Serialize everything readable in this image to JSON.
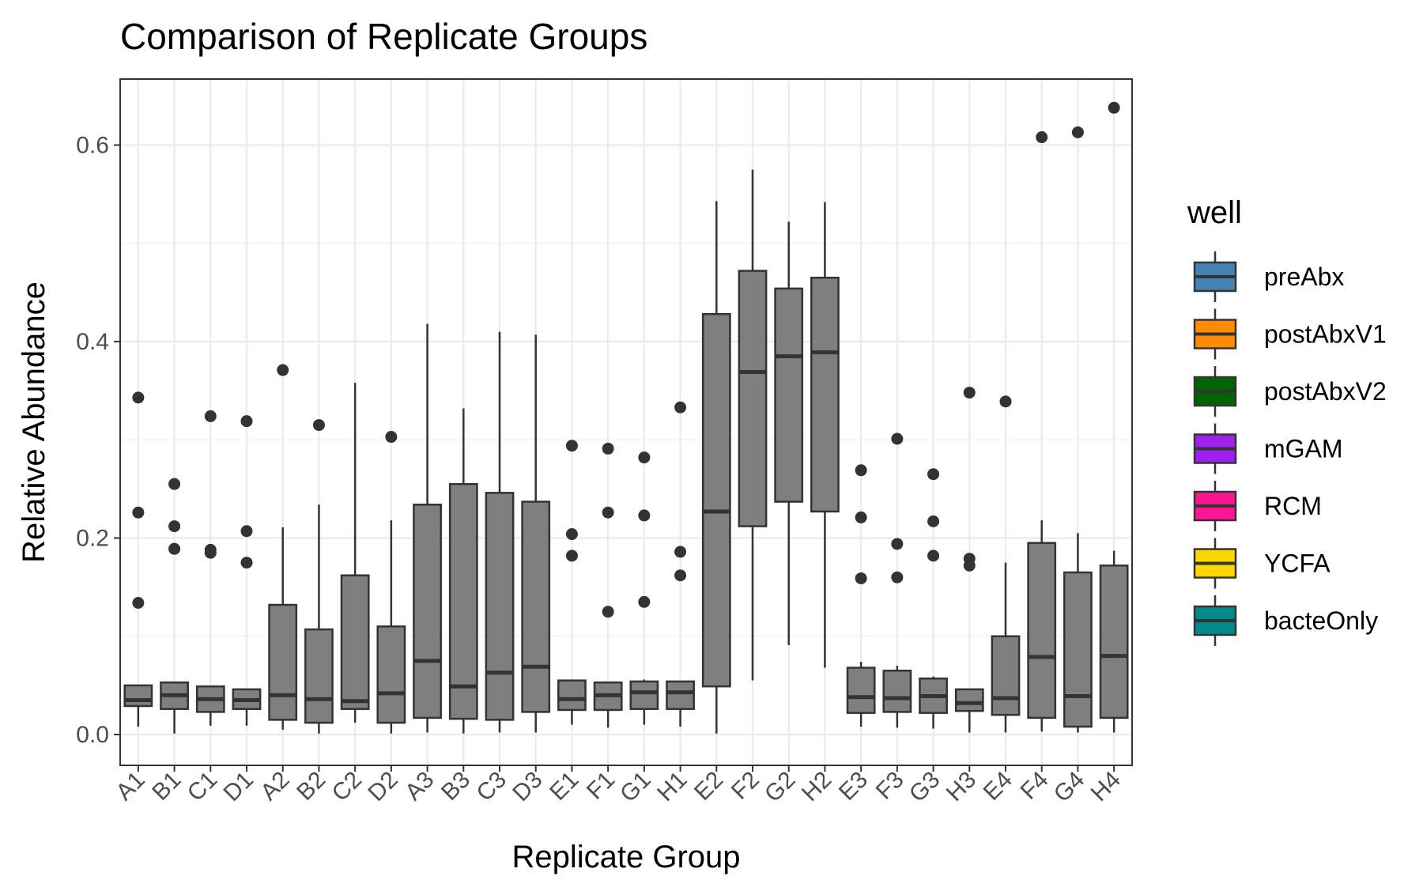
{
  "chart_data": {
    "type": "box",
    "title": "Comparison of Replicate Groups",
    "xlabel": "Replicate Group",
    "ylabel": "Relative Abundance",
    "ylim": [
      -0.04,
      0.67
    ],
    "yticks": [
      0.0,
      0.2,
      0.4,
      0.6
    ],
    "ytick_labels": [
      "0.0",
      "0.2",
      "0.4",
      "0.6"
    ],
    "grid": true,
    "box_fill": "#7f7f7f",
    "box_stroke": "#333333",
    "categories": [
      "A1",
      "B1",
      "C1",
      "D1",
      "A2",
      "B2",
      "C2",
      "D2",
      "A3",
      "B3",
      "C3",
      "D3",
      "E1",
      "F1",
      "G1",
      "H1",
      "E2",
      "F2",
      "G2",
      "H2",
      "E3",
      "F3",
      "G3",
      "H3",
      "E4",
      "F4",
      "G4",
      "H4"
    ],
    "boxes": [
      {
        "low": 0.008,
        "q1": 0.029,
        "median": 0.035,
        "q3": 0.05,
        "high": 0.05,
        "outliers": [
          0.343,
          0.226,
          0.134
        ]
      },
      {
        "low": 0.001,
        "q1": 0.026,
        "median": 0.04,
        "q3": 0.053,
        "high": 0.053,
        "outliers": [
          0.255,
          0.212,
          0.189
        ]
      },
      {
        "low": 0.009,
        "q1": 0.023,
        "median": 0.036,
        "q3": 0.049,
        "high": 0.049,
        "outliers": [
          0.324,
          0.188,
          0.185
        ]
      },
      {
        "low": 0.009,
        "q1": 0.026,
        "median": 0.035,
        "q3": 0.046,
        "high": 0.046,
        "outliers": [
          0.319,
          0.207,
          0.175
        ]
      },
      {
        "low": 0.005,
        "q1": 0.015,
        "median": 0.04,
        "q3": 0.132,
        "high": 0.211,
        "outliers": [
          0.371
        ]
      },
      {
        "low": 0.001,
        "q1": 0.012,
        "median": 0.036,
        "q3": 0.107,
        "high": 0.234,
        "outliers": [
          0.315
        ]
      },
      {
        "low": 0.012,
        "q1": 0.026,
        "median": 0.034,
        "q3": 0.162,
        "high": 0.358,
        "outliers": []
      },
      {
        "low": 0.001,
        "q1": 0.012,
        "median": 0.042,
        "q3": 0.11,
        "high": 0.218,
        "outliers": [
          0.303
        ]
      },
      {
        "low": 0.002,
        "q1": 0.017,
        "median": 0.075,
        "q3": 0.234,
        "high": 0.418,
        "outliers": []
      },
      {
        "low": 0.001,
        "q1": 0.016,
        "median": 0.049,
        "q3": 0.255,
        "high": 0.332,
        "outliers": []
      },
      {
        "low": 0.002,
        "q1": 0.015,
        "median": 0.063,
        "q3": 0.246,
        "high": 0.41,
        "outliers": []
      },
      {
        "low": 0.002,
        "q1": 0.023,
        "median": 0.069,
        "q3": 0.237,
        "high": 0.407,
        "outliers": []
      },
      {
        "low": 0.01,
        "q1": 0.025,
        "median": 0.036,
        "q3": 0.055,
        "high": 0.055,
        "outliers": [
          0.294,
          0.204,
          0.182
        ]
      },
      {
        "low": 0.007,
        "q1": 0.025,
        "median": 0.04,
        "q3": 0.053,
        "high": 0.053,
        "outliers": [
          0.291,
          0.226,
          0.125
        ]
      },
      {
        "low": 0.01,
        "q1": 0.026,
        "median": 0.043,
        "q3": 0.054,
        "high": 0.056,
        "outliers": [
          0.282,
          0.223,
          0.135
        ]
      },
      {
        "low": 0.008,
        "q1": 0.026,
        "median": 0.043,
        "q3": 0.054,
        "high": 0.054,
        "outliers": [
          0.333,
          0.186,
          0.162
        ]
      },
      {
        "low": 0.001,
        "q1": 0.049,
        "median": 0.227,
        "q3": 0.428,
        "high": 0.543,
        "outliers": []
      },
      {
        "low": 0.055,
        "q1": 0.212,
        "median": 0.369,
        "q3": 0.472,
        "high": 0.575,
        "outliers": []
      },
      {
        "low": 0.091,
        "q1": 0.237,
        "median": 0.385,
        "q3": 0.454,
        "high": 0.522,
        "outliers": []
      },
      {
        "low": 0.068,
        "q1": 0.227,
        "median": 0.389,
        "q3": 0.465,
        "high": 0.542,
        "outliers": []
      },
      {
        "low": 0.008,
        "q1": 0.022,
        "median": 0.038,
        "q3": 0.068,
        "high": 0.074,
        "outliers": [
          0.269,
          0.221,
          0.159
        ]
      },
      {
        "low": 0.007,
        "q1": 0.023,
        "median": 0.037,
        "q3": 0.065,
        "high": 0.07,
        "outliers": [
          0.301,
          0.194,
          0.16
        ]
      },
      {
        "low": 0.006,
        "q1": 0.022,
        "median": 0.039,
        "q3": 0.057,
        "high": 0.059,
        "outliers": [
          0.265,
          0.217,
          0.182
        ]
      },
      {
        "low": 0.002,
        "q1": 0.024,
        "median": 0.032,
        "q3": 0.046,
        "high": 0.046,
        "outliers": [
          0.348,
          0.179,
          0.172
        ]
      },
      {
        "low": 0.002,
        "q1": 0.02,
        "median": 0.037,
        "q3": 0.1,
        "high": 0.175,
        "outliers": [
          0.339
        ]
      },
      {
        "low": 0.003,
        "q1": 0.017,
        "median": 0.079,
        "q3": 0.195,
        "high": 0.218,
        "outliers": [
          0.608
        ]
      },
      {
        "low": 0.002,
        "q1": 0.008,
        "median": 0.039,
        "q3": 0.165,
        "high": 0.205,
        "outliers": [
          0.613
        ]
      },
      {
        "low": 0.002,
        "q1": 0.017,
        "median": 0.08,
        "q3": 0.172,
        "high": 0.187,
        "outliers": [
          0.638
        ]
      }
    ],
    "legend": {
      "title": "well",
      "position": "right",
      "items": [
        {
          "label": "preAbx",
          "color": "#4682B4"
        },
        {
          "label": "postAbxV1",
          "color": "#FF8C00"
        },
        {
          "label": "postAbxV2",
          "color": "#006400"
        },
        {
          "label": "mGAM",
          "color": "#A020F0"
        },
        {
          "label": "RCM",
          "color": "#FF1493"
        },
        {
          "label": "YCFA",
          "color": "#FFD700"
        },
        {
          "label": "bacteOnly",
          "color": "#008B8B"
        }
      ]
    }
  }
}
